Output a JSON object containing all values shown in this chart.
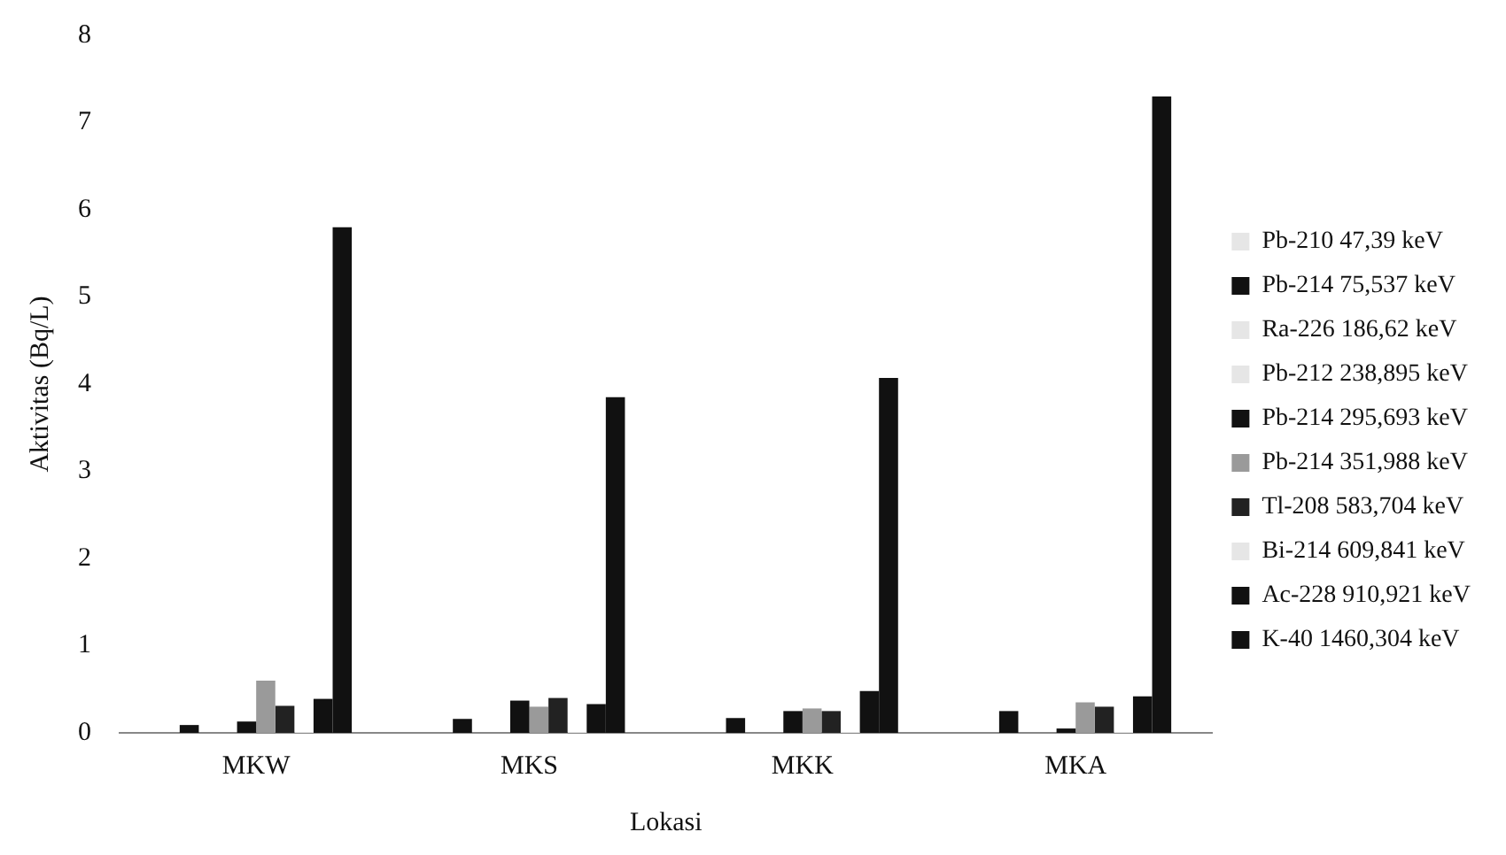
{
  "chart_data": {
    "type": "bar",
    "xlabel": "Lokasi",
    "ylabel": "Aktivitas (Bq/L)",
    "categories": [
      "MKW",
      "MKS",
      "MKK",
      "MKA"
    ],
    "series": [
      {
        "name": "Pb-210 47,39 keV",
        "color": "#e6e6e6",
        "values": [
          null,
          null,
          null,
          null
        ]
      },
      {
        "name": "Pb-214 75,537 keV",
        "color": "#111111",
        "values": [
          0.09,
          0.16,
          0.17,
          0.25
        ]
      },
      {
        "name": "Ra-226 186,62 keV",
        "color": "#e6e6e6",
        "values": [
          0,
          0,
          0,
          0
        ]
      },
      {
        "name": "Pb-212 238,895 keV",
        "color": "#e6e6e6",
        "values": [
          0,
          0,
          0,
          null
        ]
      },
      {
        "name": "Pb-214 295,693 keV",
        "color": "#111111",
        "values": [
          0.13,
          0.37,
          0.25,
          0.05
        ]
      },
      {
        "name": "Pb-214 351,988 keV",
        "color": "#9a9a9a",
        "values": [
          0.6,
          0.3,
          0.28,
          0.35
        ]
      },
      {
        "name": "Tl-208 583,704 keV",
        "color": "#222222",
        "values": [
          0.31,
          0.4,
          0.25,
          0.3
        ]
      },
      {
        "name": "Bi-214 609,841 keV",
        "color": "#e6e6e6",
        "values": [
          0.01,
          0.01,
          0.01,
          0.01
        ]
      },
      {
        "name": "Ac-228 910,921 keV",
        "color": "#111111",
        "values": [
          0.39,
          0.33,
          0.48,
          0.42
        ]
      },
      {
        "name": "K-40 1460,304 keV",
        "color": "#111111",
        "values": [
          5.8,
          3.85,
          4.07,
          7.3
        ]
      }
    ],
    "ylim": [
      0,
      8
    ],
    "yticks": [
      0,
      1,
      2,
      3,
      4,
      5,
      6,
      7,
      8
    ],
    "grid": false,
    "legend": "right"
  }
}
